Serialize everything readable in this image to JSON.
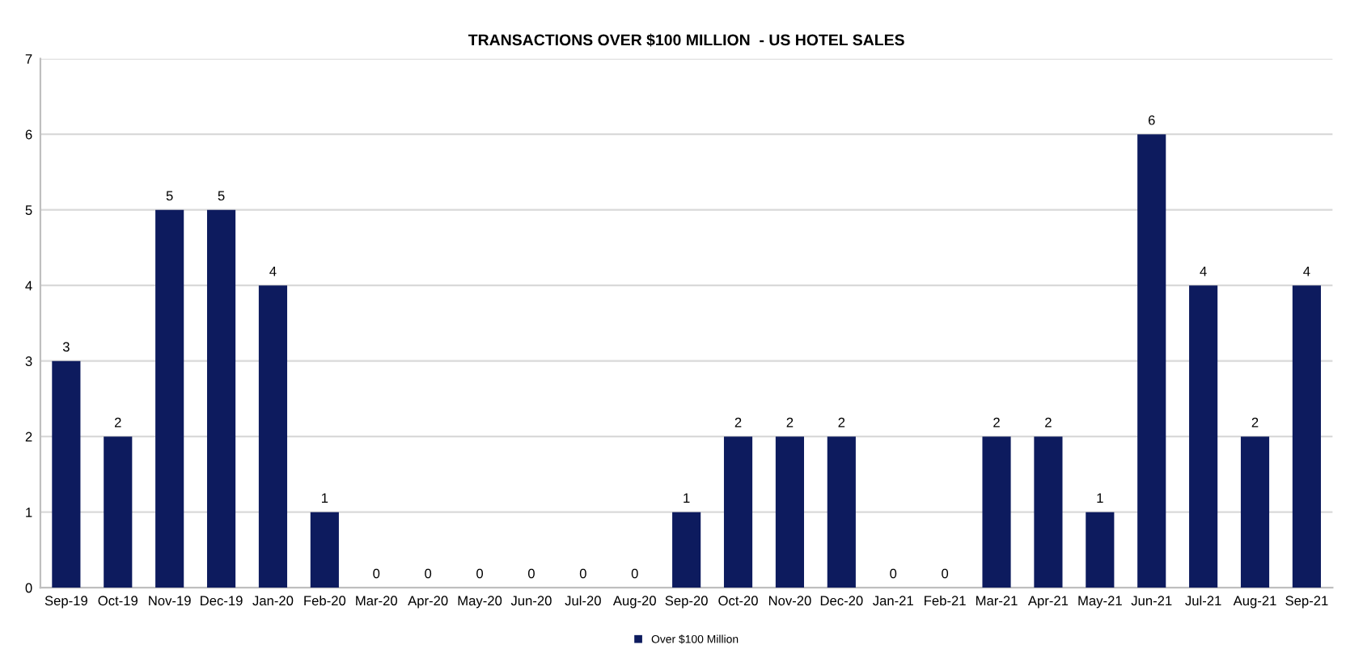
{
  "chart_data": {
    "type": "bar",
    "title": "TRANSACTIONS OVER $100 MILLION  - US HOTEL SALES",
    "categories": [
      "Sep-19",
      "Oct-19",
      "Nov-19",
      "Dec-19",
      "Jan-20",
      "Feb-20",
      "Mar-20",
      "Apr-20",
      "May-20",
      "Jun-20",
      "Jul-20",
      "Aug-20",
      "Sep-20",
      "Oct-20",
      "Nov-20",
      "Dec-20",
      "Jan-21",
      "Feb-21",
      "Mar-21",
      "Apr-21",
      "May-21",
      "Jun-21",
      "Jul-21",
      "Aug-21",
      "Sep-21"
    ],
    "series": [
      {
        "name": "Over $100 Million",
        "color": "#0d1b5e",
        "values": [
          3,
          2,
          5,
          5,
          4,
          1,
          0,
          0,
          0,
          0,
          0,
          0,
          1,
          2,
          2,
          2,
          0,
          0,
          2,
          2,
          1,
          6,
          4,
          2,
          4
        ]
      }
    ],
    "ylim": [
      0,
      7
    ],
    "yticks": [
      0,
      1,
      2,
      3,
      4,
      5,
      6,
      7
    ],
    "grid": "y",
    "legend": "bottom",
    "data_labels": true
  }
}
